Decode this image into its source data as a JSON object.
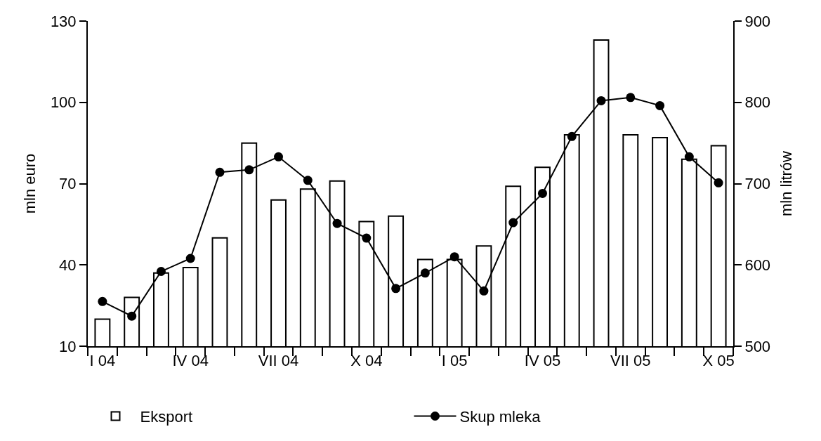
{
  "chart_data": {
    "type": "bar",
    "ylabel": "mln euro",
    "y2label": "mln litrów",
    "categories": [
      "I 04",
      null,
      null,
      "IV 04",
      null,
      null,
      "VII 04",
      null,
      null,
      "X 04",
      null,
      null,
      "I 05",
      null,
      null,
      "IV 05",
      null,
      null,
      "VII 05",
      null,
      null,
      "X 05"
    ],
    "series": [
      {
        "name": "Eksport",
        "color": "#ffffff",
        "values": [
          20,
          28,
          37,
          39,
          50,
          85,
          64,
          68,
          71,
          56,
          58,
          42,
          42,
          47,
          69,
          76,
          88,
          123,
          88,
          87,
          79,
          84
        ]
      },
      {
        "name": "Skup mleka",
        "type": "line",
        "axis": "y2",
        "color": "#000000",
        "marker": "circle",
        "values": [
          555,
          537,
          592,
          608,
          714,
          717,
          733,
          704,
          651,
          633,
          571,
          590,
          610,
          568,
          652,
          688,
          758,
          802,
          806,
          796,
          733,
          701
        ]
      }
    ],
    "ylim": [
      10,
      130
    ],
    "yticks": [
      10,
      40,
      70,
      100,
      130
    ],
    "y2lim": [
      500,
      900
    ],
    "y2ticks": [
      500,
      600,
      700,
      800,
      900
    ],
    "grid": false,
    "legend": "bottom"
  }
}
